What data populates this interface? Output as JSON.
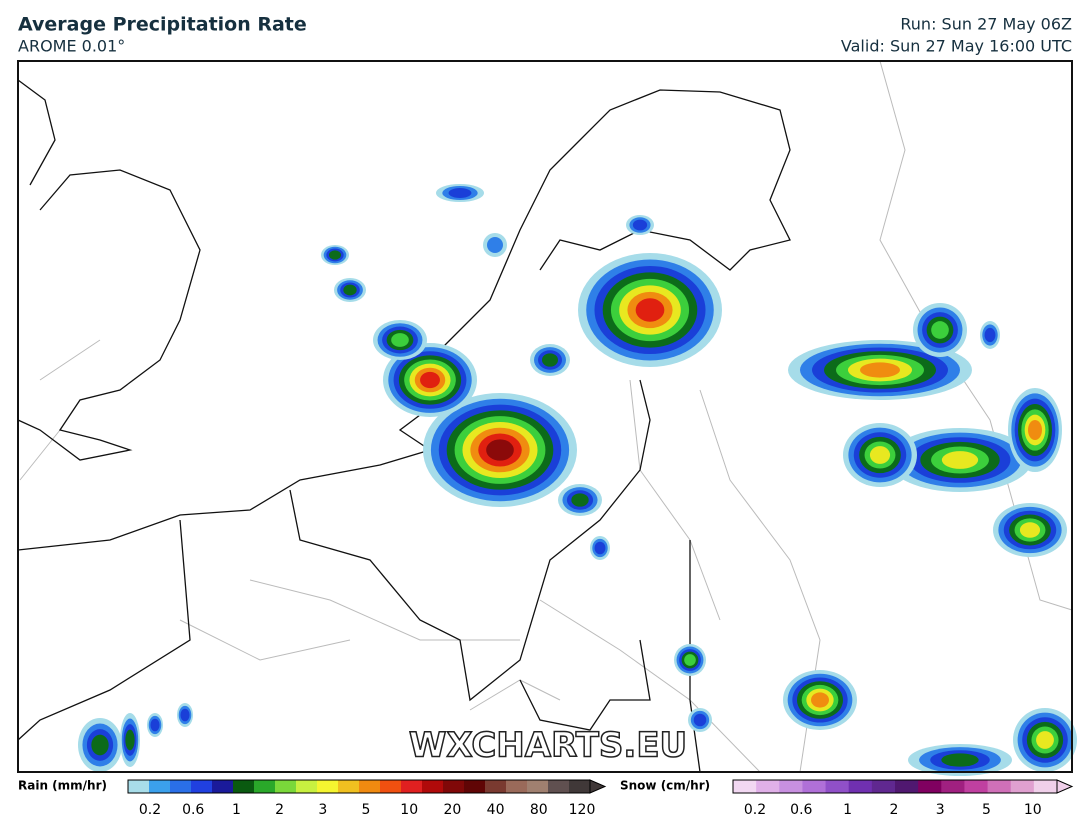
{
  "header": {
    "title": "Average Precipitation Rate",
    "subtitle": "AROME 0.01°",
    "run": "Run: Sun 27 May 06Z",
    "valid": "Valid: Sun 27 May 16:00 UTC"
  },
  "watermark": "WXCHARTS.EU",
  "legend": {
    "rain": {
      "label": "Rain (mm/hr)",
      "ticks": [
        "0.2",
        "0.6",
        "1",
        "2",
        "3",
        "5",
        "10",
        "20",
        "40",
        "80",
        "120"
      ]
    },
    "snow": {
      "label": "Snow (cm/hr)",
      "ticks": [
        "0.2",
        "0.6",
        "1",
        "2",
        "3",
        "5",
        "10"
      ]
    }
  }
}
